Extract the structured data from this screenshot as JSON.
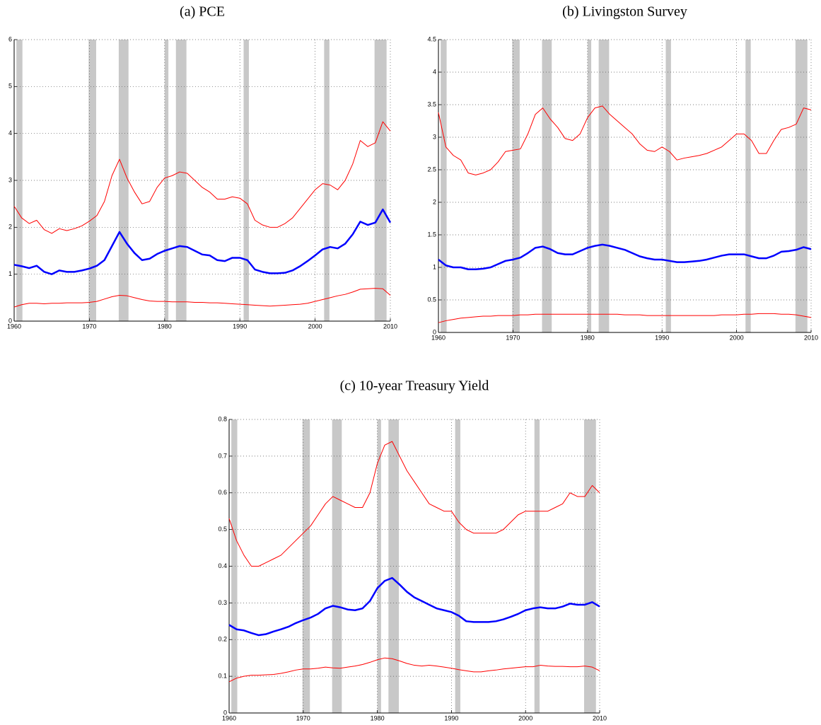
{
  "chart_data": [
    {
      "type": "line",
      "title": "(a) PCE",
      "x": [
        1960,
        1961,
        1962,
        1963,
        1964,
        1965,
        1966,
        1967,
        1968,
        1969,
        1970,
        1971,
        1972,
        1973,
        1974,
        1975,
        1976,
        1977,
        1978,
        1979,
        1980,
        1981,
        1982,
        1983,
        1984,
        1985,
        1986,
        1987,
        1988,
        1989,
        1990,
        1991,
        1992,
        1993,
        1994,
        1995,
        1996,
        1997,
        1998,
        1999,
        2000,
        2001,
        2002,
        2003,
        2004,
        2005,
        2006,
        2007,
        2008,
        2009,
        2010
      ],
      "xlim": [
        1960,
        2010
      ],
      "xticks": [
        1960,
        1970,
        1980,
        1990,
        2000,
        2010
      ],
      "ylim": [
        0,
        6
      ],
      "yticks": [
        0,
        1,
        2,
        3,
        4,
        5,
        6
      ],
      "grid": true,
      "shaded_regions": [
        [
          1960.3,
          1961.1
        ],
        [
          1969.9,
          1970.9
        ],
        [
          1973.9,
          1975.2
        ],
        [
          1980.0,
          1980.5
        ],
        [
          1981.5,
          1982.9
        ],
        [
          1990.5,
          1991.2
        ],
        [
          2001.2,
          2001.9
        ],
        [
          2007.9,
          2009.5
        ]
      ],
      "shade_color": "#c8c8c8",
      "series": [
        {
          "color": "#ff0000",
          "linewidth": 1,
          "values": [
            2.45,
            2.2,
            2.08,
            2.15,
            1.95,
            1.87,
            1.97,
            1.93,
            1.97,
            2.03,
            2.13,
            2.25,
            2.55,
            3.1,
            3.45,
            3.05,
            2.75,
            2.5,
            2.55,
            2.85,
            3.05,
            3.1,
            3.18,
            3.15,
            3.0,
            2.85,
            2.75,
            2.6,
            2.6,
            2.65,
            2.62,
            2.5,
            2.15,
            2.05,
            2.0,
            2.0,
            2.08,
            2.2,
            2.4,
            2.6,
            2.8,
            2.93,
            2.9,
            2.8,
            3.0,
            3.35,
            3.85,
            3.72,
            3.8,
            4.25,
            4.05
          ]
        },
        {
          "color": "#0000ff",
          "linewidth": 2.5,
          "values": [
            1.2,
            1.17,
            1.13,
            1.18,
            1.05,
            1.0,
            1.08,
            1.05,
            1.05,
            1.08,
            1.12,
            1.18,
            1.3,
            1.6,
            1.9,
            1.65,
            1.45,
            1.3,
            1.33,
            1.43,
            1.5,
            1.55,
            1.6,
            1.58,
            1.5,
            1.42,
            1.4,
            1.3,
            1.28,
            1.35,
            1.35,
            1.3,
            1.1,
            1.05,
            1.02,
            1.02,
            1.03,
            1.08,
            1.17,
            1.28,
            1.4,
            1.53,
            1.58,
            1.55,
            1.65,
            1.85,
            2.12,
            2.05,
            2.1,
            2.38,
            2.1
          ]
        },
        {
          "color": "#ff0000",
          "linewidth": 1,
          "values": [
            0.3,
            0.35,
            0.38,
            0.38,
            0.37,
            0.38,
            0.38,
            0.39,
            0.39,
            0.39,
            0.4,
            0.42,
            0.47,
            0.52,
            0.55,
            0.54,
            0.5,
            0.46,
            0.43,
            0.42,
            0.42,
            0.41,
            0.41,
            0.41,
            0.4,
            0.4,
            0.39,
            0.39,
            0.38,
            0.37,
            0.36,
            0.35,
            0.34,
            0.33,
            0.32,
            0.33,
            0.34,
            0.35,
            0.36,
            0.38,
            0.42,
            0.46,
            0.5,
            0.54,
            0.57,
            0.62,
            0.68,
            0.69,
            0.7,
            0.69,
            0.55
          ]
        }
      ]
    },
    {
      "type": "line",
      "title": "(b) Livingston Survey",
      "x": [
        1960,
        1961,
        1962,
        1963,
        1964,
        1965,
        1966,
        1967,
        1968,
        1969,
        1970,
        1971,
        1972,
        1973,
        1974,
        1975,
        1976,
        1977,
        1978,
        1979,
        1980,
        1981,
        1982,
        1983,
        1984,
        1985,
        1986,
        1987,
        1988,
        1989,
        1990,
        1991,
        1992,
        1993,
        1994,
        1995,
        1996,
        1997,
        1998,
        1999,
        2000,
        2001,
        2002,
        2003,
        2004,
        2005,
        2006,
        2007,
        2008,
        2009,
        2010
      ],
      "xlim": [
        1960,
        2010
      ],
      "xticks": [
        1960,
        1970,
        1980,
        1990,
        2000,
        2010
      ],
      "ylim": [
        0,
        4.5
      ],
      "yticks": [
        0,
        0.5,
        1,
        1.5,
        2,
        2.5,
        3,
        3.5,
        4,
        4.5
      ],
      "grid": true,
      "shaded_regions": [
        [
          1960.3,
          1961.1
        ],
        [
          1969.9,
          1970.9
        ],
        [
          1973.9,
          1975.2
        ],
        [
          1980.0,
          1980.5
        ],
        [
          1981.5,
          1982.9
        ],
        [
          1990.5,
          1991.2
        ],
        [
          2001.2,
          2001.9
        ],
        [
          2007.9,
          2009.5
        ]
      ],
      "shade_color": "#c8c8c8",
      "series": [
        {
          "color": "#ff0000",
          "linewidth": 1,
          "values": [
            3.38,
            2.85,
            2.72,
            2.65,
            2.45,
            2.42,
            2.45,
            2.5,
            2.62,
            2.78,
            2.8,
            2.82,
            3.05,
            3.35,
            3.45,
            3.28,
            3.15,
            2.98,
            2.95,
            3.05,
            3.3,
            3.45,
            3.48,
            3.35,
            3.25,
            3.15,
            3.05,
            2.9,
            2.8,
            2.78,
            2.85,
            2.78,
            2.65,
            2.68,
            2.7,
            2.72,
            2.75,
            2.8,
            2.85,
            2.95,
            3.05,
            3.05,
            2.95,
            2.75,
            2.75,
            2.95,
            3.12,
            3.15,
            3.2,
            3.45,
            3.42
          ]
        },
        {
          "color": "#0000ff",
          "linewidth": 2.5,
          "values": [
            1.12,
            1.03,
            1.0,
            1.0,
            0.97,
            0.97,
            0.98,
            1.0,
            1.05,
            1.1,
            1.12,
            1.15,
            1.22,
            1.3,
            1.32,
            1.28,
            1.22,
            1.2,
            1.2,
            1.25,
            1.3,
            1.33,
            1.35,
            1.33,
            1.3,
            1.27,
            1.22,
            1.17,
            1.14,
            1.12,
            1.12,
            1.1,
            1.08,
            1.08,
            1.09,
            1.1,
            1.12,
            1.15,
            1.18,
            1.2,
            1.2,
            1.2,
            1.17,
            1.14,
            1.14,
            1.18,
            1.24,
            1.25,
            1.27,
            1.31,
            1.28
          ]
        },
        {
          "color": "#ff0000",
          "linewidth": 1,
          "values": [
            0.15,
            0.18,
            0.2,
            0.22,
            0.23,
            0.24,
            0.25,
            0.25,
            0.26,
            0.26,
            0.26,
            0.27,
            0.27,
            0.28,
            0.28,
            0.28,
            0.28,
            0.28,
            0.28,
            0.28,
            0.28,
            0.28,
            0.28,
            0.28,
            0.28,
            0.27,
            0.27,
            0.27,
            0.26,
            0.26,
            0.26,
            0.26,
            0.26,
            0.26,
            0.26,
            0.26,
            0.26,
            0.26,
            0.27,
            0.27,
            0.27,
            0.28,
            0.28,
            0.29,
            0.29,
            0.29,
            0.28,
            0.28,
            0.27,
            0.25,
            0.23
          ]
        }
      ]
    },
    {
      "type": "line",
      "title": "(c) 10-year Treasury Yield",
      "x": [
        1960,
        1961,
        1962,
        1963,
        1964,
        1965,
        1966,
        1967,
        1968,
        1969,
        1970,
        1971,
        1972,
        1973,
        1974,
        1975,
        1976,
        1977,
        1978,
        1979,
        1980,
        1981,
        1982,
        1983,
        1984,
        1985,
        1986,
        1987,
        1988,
        1989,
        1990,
        1991,
        1992,
        1993,
        1994,
        1995,
        1996,
        1997,
        1998,
        1999,
        2000,
        2001,
        2002,
        2003,
        2004,
        2005,
        2006,
        2007,
        2008,
        2009,
        2010
      ],
      "xlim": [
        1960,
        2010
      ],
      "xticks": [
        1960,
        1970,
        1980,
        1990,
        2000,
        2010
      ],
      "ylim": [
        0,
        0.8
      ],
      "yticks": [
        0,
        0.1,
        0.2,
        0.3,
        0.4,
        0.5,
        0.6,
        0.7,
        0.8
      ],
      "grid": true,
      "shaded_regions": [
        [
          1960.3,
          1961.1
        ],
        [
          1969.9,
          1970.9
        ],
        [
          1973.9,
          1975.2
        ],
        [
          1980.0,
          1980.5
        ],
        [
          1981.5,
          1982.9
        ],
        [
          1990.5,
          1991.2
        ],
        [
          2001.2,
          2001.9
        ],
        [
          2007.9,
          2009.5
        ]
      ],
      "shade_color": "#c8c8c8",
      "series": [
        {
          "color": "#ff0000",
          "linewidth": 1,
          "values": [
            0.53,
            0.47,
            0.43,
            0.4,
            0.4,
            0.41,
            0.42,
            0.43,
            0.45,
            0.47,
            0.49,
            0.51,
            0.54,
            0.57,
            0.59,
            0.58,
            0.57,
            0.56,
            0.56,
            0.6,
            0.68,
            0.73,
            0.74,
            0.7,
            0.66,
            0.63,
            0.6,
            0.57,
            0.56,
            0.55,
            0.55,
            0.52,
            0.5,
            0.49,
            0.49,
            0.49,
            0.49,
            0.5,
            0.52,
            0.54,
            0.55,
            0.55,
            0.55,
            0.55,
            0.56,
            0.57,
            0.6,
            0.59,
            0.59,
            0.62,
            0.6
          ]
        },
        {
          "color": "#0000ff",
          "linewidth": 2.5,
          "values": [
            0.24,
            0.228,
            0.225,
            0.218,
            0.212,
            0.215,
            0.222,
            0.228,
            0.235,
            0.245,
            0.253,
            0.26,
            0.27,
            0.285,
            0.292,
            0.288,
            0.282,
            0.28,
            0.285,
            0.305,
            0.34,
            0.36,
            0.368,
            0.35,
            0.33,
            0.315,
            0.305,
            0.295,
            0.285,
            0.28,
            0.275,
            0.265,
            0.25,
            0.248,
            0.248,
            0.248,
            0.25,
            0.255,
            0.262,
            0.27,
            0.28,
            0.285,
            0.288,
            0.285,
            0.285,
            0.29,
            0.298,
            0.295,
            0.295,
            0.302,
            0.29
          ]
        },
        {
          "color": "#ff0000",
          "linewidth": 1,
          "values": [
            0.085,
            0.095,
            0.1,
            0.103,
            0.103,
            0.104,
            0.105,
            0.108,
            0.112,
            0.117,
            0.12,
            0.12,
            0.122,
            0.125,
            0.123,
            0.122,
            0.125,
            0.128,
            0.132,
            0.138,
            0.145,
            0.15,
            0.148,
            0.142,
            0.135,
            0.13,
            0.128,
            0.13,
            0.128,
            0.125,
            0.122,
            0.118,
            0.115,
            0.112,
            0.112,
            0.115,
            0.117,
            0.12,
            0.122,
            0.124,
            0.126,
            0.126,
            0.13,
            0.128,
            0.127,
            0.127,
            0.126,
            0.126,
            0.128,
            0.125,
            0.115
          ]
        }
      ]
    }
  ]
}
